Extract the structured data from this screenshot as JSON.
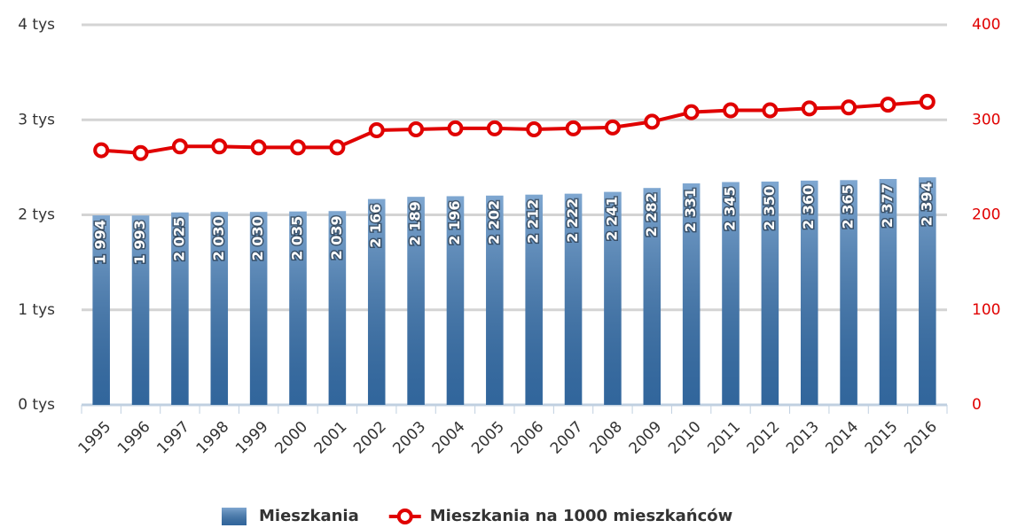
{
  "chart_data": {
    "type": "bar_line",
    "categories": [
      "1995",
      "1996",
      "1997",
      "1998",
      "1999",
      "2000",
      "2001",
      "2002",
      "2003",
      "2004",
      "2005",
      "2006",
      "2007",
      "2008",
      "2009",
      "2010",
      "2011",
      "2012",
      "2013",
      "2014",
      "2015",
      "2016"
    ],
    "series": [
      {
        "name": "Mieszkania",
        "color": "#3a78b8",
        "type": "bar",
        "values": [
          1994,
          1993,
          2025,
          2030,
          2030,
          2035,
          2039,
          2166,
          2189,
          2196,
          2202,
          2212,
          2222,
          2241,
          2282,
          2331,
          2345,
          2350,
          2360,
          2365,
          2377,
          2394
        ],
        "value_labels": [
          "1 994",
          "1 993",
          "2 025",
          "2 030",
          "2 030",
          "2 035",
          "2 039",
          "2 166",
          "2 189",
          "2 196",
          "2 202",
          "2 212",
          "2 222",
          "2 241",
          "2 282",
          "2 331",
          "2 345",
          "2 350",
          "2 360",
          "2 365",
          "2 377",
          "2 394"
        ]
      },
      {
        "name": "Mieszkania na 1000 mieszkańców",
        "color": "#e00000",
        "type": "line",
        "axis": "y2",
        "values": [
          268,
          265,
          272,
          272,
          271,
          271,
          271,
          289,
          290,
          291,
          291,
          290,
          291,
          292,
          298,
          308,
          310,
          310,
          312,
          313,
          316,
          319
        ]
      }
    ],
    "ylim": [
      0,
      4000
    ],
    "yticks": [
      {
        "value": 0,
        "label": "0 tys"
      },
      {
        "value": 1000,
        "label": "1 tys"
      },
      {
        "value": 2000,
        "label": "2 tys"
      },
      {
        "value": 3000,
        "label": "3 tys"
      },
      {
        "value": 4000,
        "label": "4 tys"
      }
    ],
    "y2lim": [
      0,
      400
    ],
    "y2ticks": [
      0,
      100,
      200,
      300,
      400
    ],
    "grid": true,
    "legend": "bottom"
  }
}
